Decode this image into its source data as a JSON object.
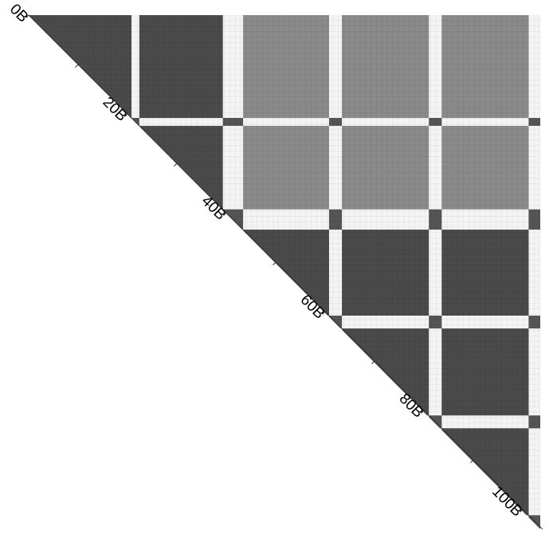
{
  "chart_data": {
    "type": "heatmap",
    "title": "",
    "xlabel": "",
    "ylabel": "",
    "shape": "upper-triangle",
    "axis": {
      "min": 0,
      "max": 104,
      "major_ticks": [
        0,
        20,
        40,
        60,
        80,
        100
      ],
      "minor_tick_step": 10,
      "tick_labels": [
        "0B",
        "20B",
        "40B",
        "60B",
        "80B",
        "100B"
      ]
    },
    "blocks": [
      {
        "start": 0,
        "end": 20.8
      },
      {
        "start": 22.4,
        "end": 39.3
      },
      {
        "start": 43.4,
        "end": 60.8
      },
      {
        "start": 63.4,
        "end": 81.0
      },
      {
        "start": 83.6,
        "end": 101.2
      }
    ],
    "separator_value": 0.03,
    "block_values": [
      [
        0.85,
        0.85,
        0.45,
        0.45,
        0.45
      ],
      [
        0.85,
        0.85,
        0.45,
        0.45,
        0.45
      ],
      [
        0.45,
        0.45,
        0.85,
        0.85,
        0.85
      ],
      [
        0.45,
        0.45,
        0.85,
        0.85,
        0.85
      ],
      [
        0.45,
        0.45,
        0.85,
        0.85,
        0.85
      ]
    ],
    "colors": {
      "high": "#4a4a4a",
      "mid": "#8a8a8a",
      "low": "#f4f4f4",
      "diagonal": "#555555"
    }
  }
}
